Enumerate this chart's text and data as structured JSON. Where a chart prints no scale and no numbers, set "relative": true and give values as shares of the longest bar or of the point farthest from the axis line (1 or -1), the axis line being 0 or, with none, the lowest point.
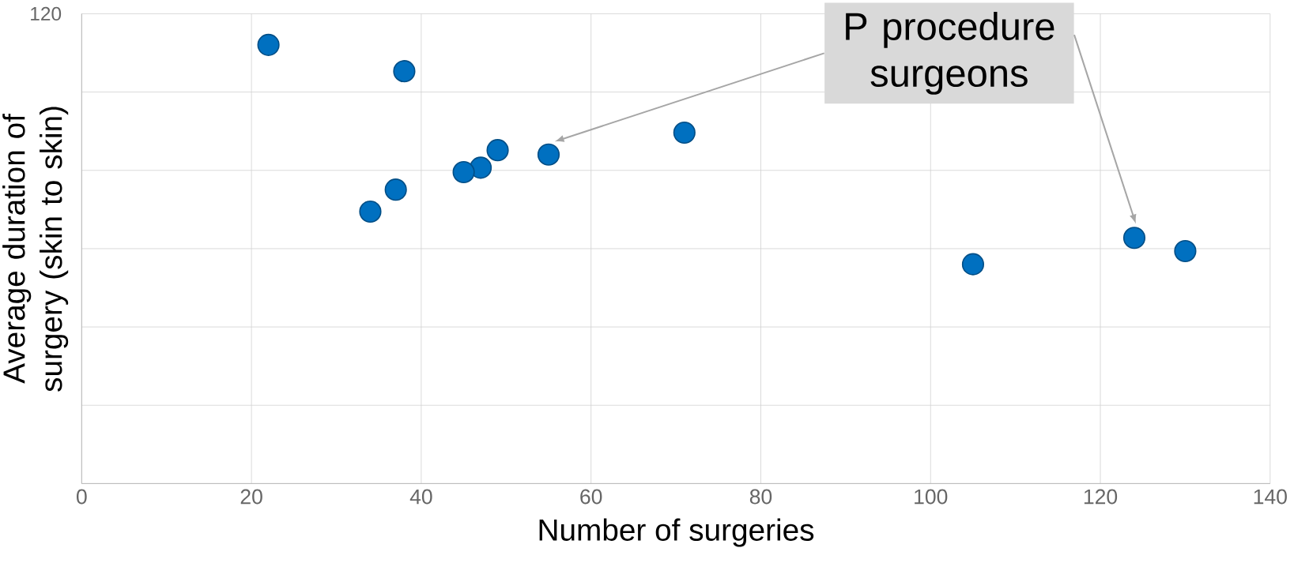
{
  "chart_data": {
    "type": "scatter",
    "relative": true,
    "xlabel": "Number of surgeries",
    "ylabel": "Average duration of surgery (skin to skin)",
    "x": [
      22,
      38,
      71,
      49,
      55,
      47,
      45,
      37,
      34,
      124,
      130,
      105
    ],
    "values": [
      1,
      0.94,
      0.8,
      0.76,
      0.75,
      0.72,
      0.71,
      0.67,
      0.62,
      0.56,
      0.53,
      0.5
    ],
    "color": "#0070c0",
    "marker": "circle",
    "grid": true,
    "xlim": [
      0,
      140
    ],
    "xticks": [
      0,
      20,
      40,
      60,
      80,
      100,
      120,
      140
    ],
    "annotations": [
      "120",
      "P procedure surgeons"
    ]
  }
}
